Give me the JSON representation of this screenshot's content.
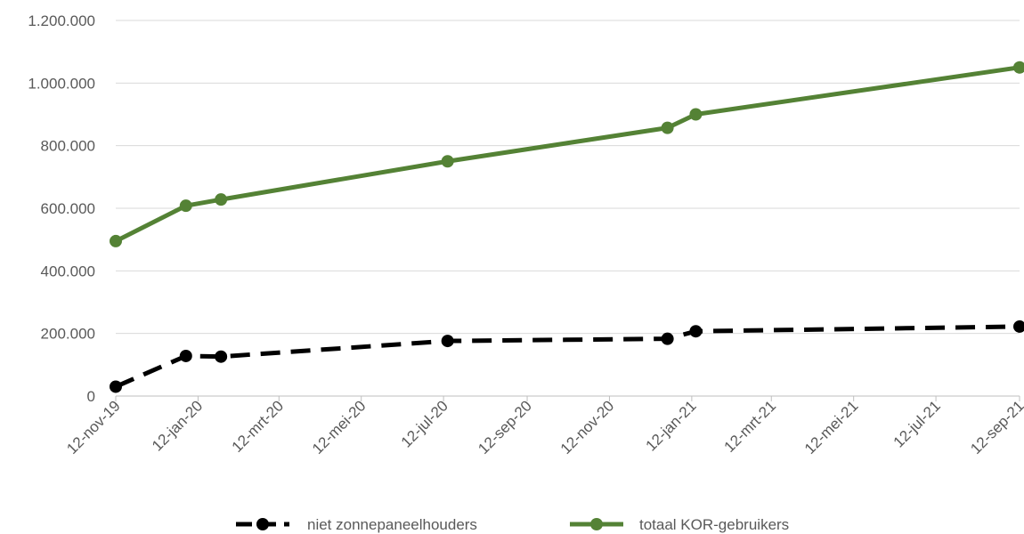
{
  "chart_data": {
    "type": "line",
    "x_axis_type": "date",
    "y_tick_labels": [
      "0",
      "200.000",
      "400.000",
      "600.000",
      "800.000",
      "1.000.000",
      "1.200.000"
    ],
    "ylim": [
      0,
      1200000
    ],
    "y_ticks": [
      0,
      200000,
      400000,
      600000,
      800000,
      1000000,
      1200000
    ],
    "x_ticks": [
      "2019-11-12",
      "2020-01-12",
      "2020-03-12",
      "2020-05-12",
      "2020-07-12",
      "2020-09-12",
      "2020-11-12",
      "2021-01-12",
      "2021-03-12",
      "2021-05-12",
      "2021-07-12",
      "2021-09-12"
    ],
    "x_tick_labels": [
      "12-nov-19",
      "12-jan-20",
      "12-mrt-20",
      "12-mei-20",
      "12-jul-20",
      "12-sep-20",
      "12-nov-20",
      "12-jan-21",
      "12-mrt-21",
      "12-mei-21",
      "12-jul-21",
      "12-sep-21"
    ],
    "xlim": [
      "2019-11-12",
      "2021-09-12"
    ],
    "grid": "horizontal",
    "legend_position": "bottom",
    "series": [
      {
        "name": "niet zonnepaneelhouders",
        "color": "#000000",
        "dash": "dashed",
        "points": [
          {
            "x": "2019-11-12",
            "y": 30000
          },
          {
            "x": "2020-01-03",
            "y": 128000
          },
          {
            "x": "2020-01-29",
            "y": 126000
          },
          {
            "x": "2020-07-15",
            "y": 176000
          },
          {
            "x": "2020-12-25",
            "y": 183000
          },
          {
            "x": "2021-01-15",
            "y": 207000
          },
          {
            "x": "2021-09-12",
            "y": 222000
          }
        ]
      },
      {
        "name": "totaal KOR-gebruikers",
        "color": "#548235",
        "dash": "solid",
        "points": [
          {
            "x": "2019-11-12",
            "y": 495000
          },
          {
            "x": "2020-01-03",
            "y": 608000
          },
          {
            "x": "2020-01-29",
            "y": 628000
          },
          {
            "x": "2020-07-15",
            "y": 750000
          },
          {
            "x": "2020-12-25",
            "y": 857000
          },
          {
            "x": "2021-01-15",
            "y": 900000
          },
          {
            "x": "2021-09-12",
            "y": 1050000
          }
        ]
      }
    ]
  }
}
